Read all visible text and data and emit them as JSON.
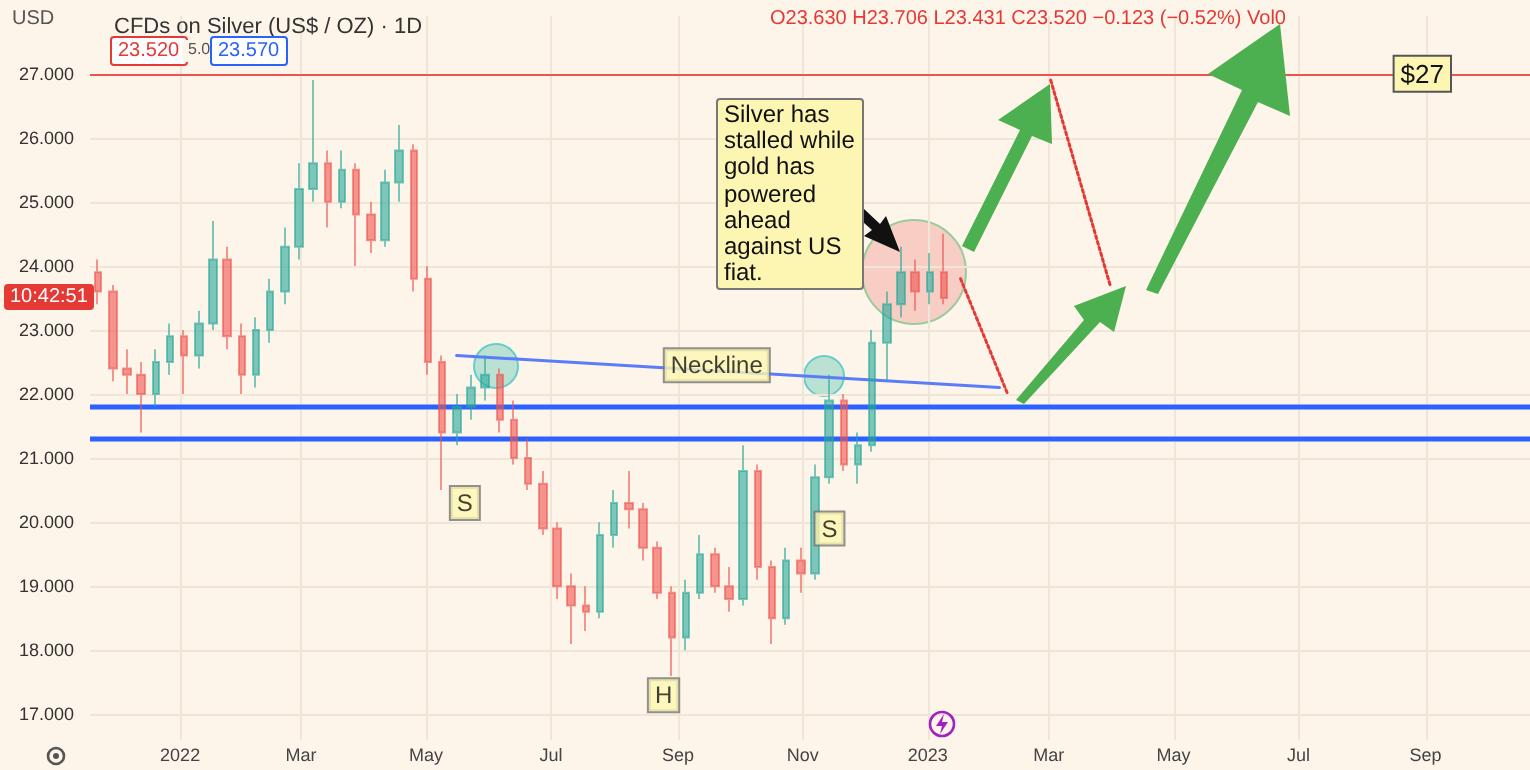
{
  "chart_data": {
    "type": "candlestick",
    "title": "CFDs on Silver (US$ / OZ) · 1D",
    "x": [
      "2021-11-22",
      "2021-11-29",
      "2021-12-06",
      "2021-12-13",
      "2021-12-20",
      "2021-12-27",
      "2022-01-03",
      "2022-01-10",
      "2022-01-17",
      "2022-01-24",
      "2022-01-31",
      "2022-02-07",
      "2022-02-14",
      "2022-02-21",
      "2022-02-28",
      "2022-03-07",
      "2022-03-14",
      "2022-03-21",
      "2022-03-28",
      "2022-04-04",
      "2022-04-11",
      "2022-04-18",
      "2022-04-25",
      "2022-05-02",
      "2022-05-09",
      "2022-05-16",
      "2022-05-23",
      "2022-05-30",
      "2022-06-06",
      "2022-06-13",
      "2022-06-20",
      "2022-06-27",
      "2022-07-04",
      "2022-07-11",
      "2022-07-18",
      "2022-07-25",
      "2022-08-01",
      "2022-08-08",
      "2022-08-15",
      "2022-08-22",
      "2022-08-29",
      "2022-09-05",
      "2022-09-12",
      "2022-09-19",
      "2022-09-26",
      "2022-10-03",
      "2022-10-10",
      "2022-10-17",
      "2022-10-24",
      "2022-10-31",
      "2022-11-07",
      "2022-11-14",
      "2022-11-21",
      "2022-11-28",
      "2022-12-05",
      "2022-12-12",
      "2022-12-19",
      "2022-12-26",
      "2023-01-02",
      "2023-01-09"
    ],
    "ohlc": [
      [
        23.9,
        24.1,
        23.4,
        23.6
      ],
      [
        23.6,
        23.7,
        22.2,
        22.4
      ],
      [
        22.4,
        22.7,
        22.0,
        22.3
      ],
      [
        22.3,
        22.5,
        21.4,
        22.0
      ],
      [
        22.0,
        22.7,
        21.8,
        22.5
      ],
      [
        22.5,
        23.1,
        22.3,
        22.9
      ],
      [
        22.9,
        23.0,
        22.0,
        22.6
      ],
      [
        22.6,
        23.3,
        22.4,
        23.1
      ],
      [
        23.1,
        24.7,
        23.0,
        24.1
      ],
      [
        24.1,
        24.3,
        22.7,
        22.9
      ],
      [
        22.9,
        23.1,
        22.0,
        22.3
      ],
      [
        22.3,
        23.2,
        22.1,
        23.0
      ],
      [
        23.0,
        23.8,
        22.8,
        23.6
      ],
      [
        23.6,
        24.6,
        23.4,
        24.3
      ],
      [
        24.3,
        25.6,
        24.1,
        25.2
      ],
      [
        25.2,
        26.9,
        25.0,
        25.6
      ],
      [
        25.6,
        25.8,
        24.6,
        25.0
      ],
      [
        25.0,
        25.8,
        24.9,
        25.5
      ],
      [
        25.5,
        25.6,
        24.0,
        24.8
      ],
      [
        24.8,
        25.0,
        24.2,
        24.4
      ],
      [
        24.4,
        25.5,
        24.3,
        25.3
      ],
      [
        25.3,
        26.2,
        25.0,
        25.8
      ],
      [
        25.8,
        25.9,
        23.6,
        23.8
      ],
      [
        23.8,
        24.0,
        22.3,
        22.5
      ],
      [
        22.5,
        22.6,
        20.5,
        21.4
      ],
      [
        21.4,
        22.0,
        21.2,
        21.8
      ],
      [
        21.8,
        22.3,
        21.6,
        22.1
      ],
      [
        22.1,
        22.6,
        21.9,
        22.3
      ],
      [
        22.3,
        22.4,
        21.4,
        21.6
      ],
      [
        21.6,
        21.9,
        20.9,
        21.0
      ],
      [
        21.0,
        21.3,
        20.5,
        20.6
      ],
      [
        20.6,
        20.8,
        19.8,
        19.9
      ],
      [
        19.9,
        20.0,
        18.8,
        19.0
      ],
      [
        19.0,
        19.2,
        18.1,
        18.7
      ],
      [
        18.7,
        19.0,
        18.3,
        18.6
      ],
      [
        18.6,
        20.0,
        18.5,
        19.8
      ],
      [
        19.8,
        20.5,
        19.6,
        20.3
      ],
      [
        20.3,
        20.8,
        19.9,
        20.2
      ],
      [
        20.2,
        20.3,
        19.4,
        19.6
      ],
      [
        19.6,
        19.7,
        18.8,
        18.9
      ],
      [
        18.9,
        19.0,
        17.6,
        18.2
      ],
      [
        18.2,
        19.1,
        18.0,
        18.9
      ],
      [
        18.9,
        19.8,
        18.8,
        19.5
      ],
      [
        19.5,
        19.6,
        18.9,
        19.0
      ],
      [
        19.0,
        19.3,
        18.6,
        18.8
      ],
      [
        18.8,
        21.2,
        18.7,
        20.8
      ],
      [
        20.8,
        20.9,
        19.1,
        19.3
      ],
      [
        19.3,
        19.4,
        18.1,
        18.5
      ],
      [
        18.5,
        19.6,
        18.4,
        19.4
      ],
      [
        19.4,
        19.6,
        18.9,
        19.2
      ],
      [
        19.2,
        20.9,
        19.1,
        20.7
      ],
      [
        20.7,
        22.3,
        20.6,
        21.9
      ],
      [
        21.9,
        22.0,
        20.8,
        20.9
      ],
      [
        20.9,
        21.4,
        20.6,
        21.2
      ],
      [
        21.2,
        23.0,
        21.1,
        22.8
      ],
      [
        22.8,
        23.6,
        22.2,
        23.4
      ],
      [
        23.4,
        24.3,
        23.2,
        23.9
      ],
      [
        23.9,
        24.1,
        23.3,
        23.6
      ],
      [
        23.6,
        24.2,
        23.4,
        23.9
      ],
      [
        23.9,
        24.5,
        23.4,
        23.5
      ]
    ],
    "series": [
      {
        "type": "line",
        "color": "#5b7cfa",
        "x": [
          "2022-05-16",
          "2023-02-05"
        ],
        "values": [
          22.6,
          22.1
        ]
      },
      {
        "type": "line",
        "color": "#e53935",
        "line_style": "dotted",
        "x": [
          "2023-01-17",
          "2023-02-09"
        ],
        "values": [
          23.8,
          22.0
        ]
      },
      {
        "type": "line",
        "color": "#e53935",
        "line_style": "dotted",
        "x": [
          "2023-03-02",
          "2023-03-31"
        ],
        "values": [
          26.9,
          23.7
        ]
      }
    ],
    "xlim": [
      "2021-11-18",
      "2023-10-22"
    ],
    "xticks": [
      {
        "value": "2022-01-01",
        "label": "2022"
      },
      {
        "value": "2022-03-01",
        "label": "Mar"
      },
      {
        "value": "2022-05-01",
        "label": "May"
      },
      {
        "value": "2022-07-01",
        "label": "Jul"
      },
      {
        "value": "2022-09-01",
        "label": "Sep"
      },
      {
        "value": "2022-11-01",
        "label": "Nov"
      },
      {
        "value": "2023-01-01",
        "label": "2023"
      },
      {
        "value": "2023-03-01",
        "label": "Mar"
      },
      {
        "value": "2023-05-01",
        "label": "May"
      },
      {
        "value": "2023-07-01",
        "label": "Jul"
      },
      {
        "value": "2023-09-01",
        "label": "Sep"
      }
    ],
    "ylim": [
      16.6,
      27.9
    ],
    "yticks": [
      {
        "value": 17,
        "label": "17.000"
      },
      {
        "value": 18,
        "label": "18.000"
      },
      {
        "value": 19,
        "label": "19.000"
      },
      {
        "value": 20,
        "label": "20.000"
      },
      {
        "value": 21,
        "label": "21.000"
      },
      {
        "value": 22,
        "label": "22.000"
      },
      {
        "value": 23,
        "label": "23.000"
      },
      {
        "value": 24,
        "label": "24.000"
      },
      {
        "value": 25,
        "label": "25.000"
      },
      {
        "value": 26,
        "label": "26.000"
      },
      {
        "value": 27,
        "label": "27.000"
      }
    ],
    "ref_lines": [
      {
        "axis": "y",
        "value": 27,
        "label": "$27",
        "color": "#ef5350"
      },
      {
        "axis": "y",
        "value": 21.8,
        "color": "#2962ff"
      },
      {
        "axis": "y",
        "value": 21.3,
        "color": "#2962ff"
      }
    ],
    "annotations": [
      "USD",
      "O23.630 H23.706 L23.431 C23.520 −0.123 (−0.52%) Vol0",
      "23.520",
      "5.0",
      "23.570",
      "10:42:51",
      "Silver has stalled while gold has powered ahead against US fiat.",
      {
        "text": "Neckline",
        "x": "2022-09-20",
        "y": 22.45
      },
      {
        "text": "S",
        "x": "2022-05-20",
        "y": 20.3
      },
      {
        "text": "H",
        "x": "2022-08-25",
        "y": 17.3
      },
      {
        "text": "S",
        "x": "2022-11-14",
        "y": 19.9
      }
    ],
    "grid": true
  }
}
